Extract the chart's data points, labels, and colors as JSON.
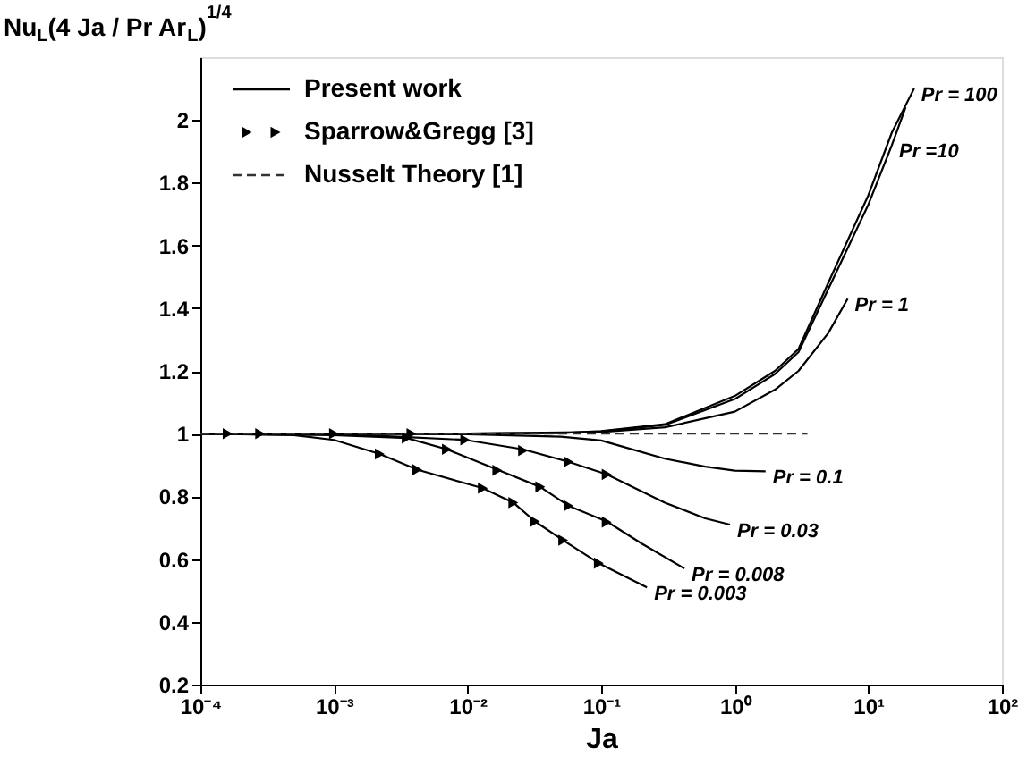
{
  "chart_data": {
    "type": "line",
    "xlabel": "Ja",
    "ylabel": "Nu$_{L}$(4 Ja / Pr Ar$_{L}$)$^{1/4}$",
    "log": "x",
    "grid": false,
    "legend": "top left",
    "xlim": [
      0.0001,
      100
    ],
    "ylim": [
      0.2,
      2.2
    ],
    "xticks": [
      {
        "value": 0.0001,
        "label": "10⁻⁴"
      },
      {
        "value": 0.001,
        "label": "10⁻³"
      },
      {
        "value": 0.01,
        "label": "10⁻²"
      },
      {
        "value": 0.1,
        "label": "10⁻¹"
      },
      {
        "value": 1,
        "label": "10⁰"
      },
      {
        "value": 10,
        "label": "10¹"
      },
      {
        "value": 100,
        "label": "10²"
      }
    ],
    "yticks": [
      0.2,
      0.4,
      0.6,
      0.8,
      1,
      1.2,
      1.4,
      1.6,
      1.8,
      2
    ],
    "series": [
      {
        "name": "Present work",
        "color": "#000000",
        "line_style": "solid",
        "x": [
          0.0001,
          0.001,
          0.01,
          0.05,
          0.1,
          0.3,
          1,
          2,
          3,
          5,
          10,
          15,
          22
        ],
        "values": [
          1,
          1,
          1,
          1.002,
          1.008,
          1.03,
          1.12,
          1.2,
          1.27,
          1.48,
          1.76,
          1.96,
          2.1
        ]
      },
      {
        "color": "#000000",
        "line_style": "solid",
        "x": [
          0.0001,
          0.001,
          0.01,
          0.05,
          0.1,
          0.3,
          1,
          2,
          3,
          5,
          10,
          15,
          19
        ],
        "values": [
          1,
          1,
          1,
          1.002,
          1.007,
          1.028,
          1.11,
          1.19,
          1.26,
          1.46,
          1.73,
          1.92,
          2.04
        ]
      },
      {
        "color": "#000000",
        "line_style": "solid",
        "x": [
          0.0001,
          0.001,
          0.01,
          0.1,
          0.3,
          1,
          2,
          3,
          5,
          7
        ],
        "values": [
          1,
          1,
          1,
          1.005,
          1.02,
          1.07,
          1.14,
          1.2,
          1.32,
          1.43
        ]
      },
      {
        "color": "#000000",
        "line_style": "solid",
        "x": [
          0.0001,
          0.001,
          0.01,
          0.05,
          0.1,
          0.3,
          0.6,
          1,
          1.7
        ],
        "values": [
          1,
          1,
          0.998,
          0.99,
          0.978,
          0.92,
          0.895,
          0.882,
          0.88
        ]
      },
      {
        "color": "#000000",
        "line_style": "solid",
        "x": [
          0.0001,
          0.001,
          0.003,
          0.0096,
          0.026,
          0.057,
          0.11,
          0.3,
          0.6,
          0.92
        ],
        "values": [
          1,
          0.998,
          0.99,
          0.98,
          0.95,
          0.91,
          0.87,
          0.78,
          0.73,
          0.71
        ]
      },
      {
        "color": "#000000",
        "line_style": "solid",
        "x": [
          0.0001,
          0.001,
          0.0035,
          0.007,
          0.0167,
          0.035,
          0.057,
          0.11,
          0.2,
          0.42
        ],
        "values": [
          1,
          0.995,
          0.986,
          0.95,
          0.885,
          0.83,
          0.77,
          0.72,
          0.65,
          0.57
        ]
      },
      {
        "color": "#000000",
        "line_style": "solid",
        "x": [
          0.0001,
          0.0005,
          0.001,
          0.0022,
          0.0042,
          0.013,
          0.022,
          0.032,
          0.052,
          0.096,
          0.22
        ],
        "values": [
          1,
          0.995,
          0.98,
          0.935,
          0.885,
          0.826,
          0.78,
          0.72,
          0.66,
          0.587,
          0.51
        ]
      },
      {
        "name": "Sparrow&Gregg [3]",
        "type": "scatter",
        "marker": "triangle",
        "color": "#000000",
        "x": [
          0.00016,
          0.00028,
          0.001,
          0.0038,
          0.0022,
          0.0042,
          0.013,
          0.022,
          0.032,
          0.052,
          0.096,
          0.0035,
          0.007,
          0.0167,
          0.035,
          0.057,
          0.11,
          0.0096,
          0.026,
          0.057,
          0.11
        ],
        "values": [
          1,
          1,
          1,
          1,
          0.935,
          0.885,
          0.826,
          0.78,
          0.72,
          0.66,
          0.587,
          0.986,
          0.95,
          0.883,
          0.83,
          0.77,
          0.718,
          0.98,
          0.946,
          0.91,
          0.87
        ]
      },
      {
        "name": "Nusselt Theory [1]",
        "color": "#333333",
        "line_style": "dashed",
        "x": [
          0.0001,
          3.5
        ],
        "values": [
          1,
          1
        ]
      }
    ],
    "annotations": [
      {
        "text": "Pr = 100",
        "x": 22,
        "y": 2.1
      },
      {
        "text": "Pr =10",
        "x": 15,
        "y": 1.92
      },
      {
        "text": "Pr = 1",
        "x": 7,
        "y": 1.43
      },
      {
        "text": "Pr = 0.1",
        "x": 1.7,
        "y": 0.88
      },
      {
        "text": "Pr = 0.03",
        "x": 0.92,
        "y": 0.71
      },
      {
        "text": "Pr = 0.008",
        "x": 0.42,
        "y": 0.57
      },
      {
        "text": "Pr = 0.003",
        "x": 0.22,
        "y": 0.51
      }
    ]
  }
}
